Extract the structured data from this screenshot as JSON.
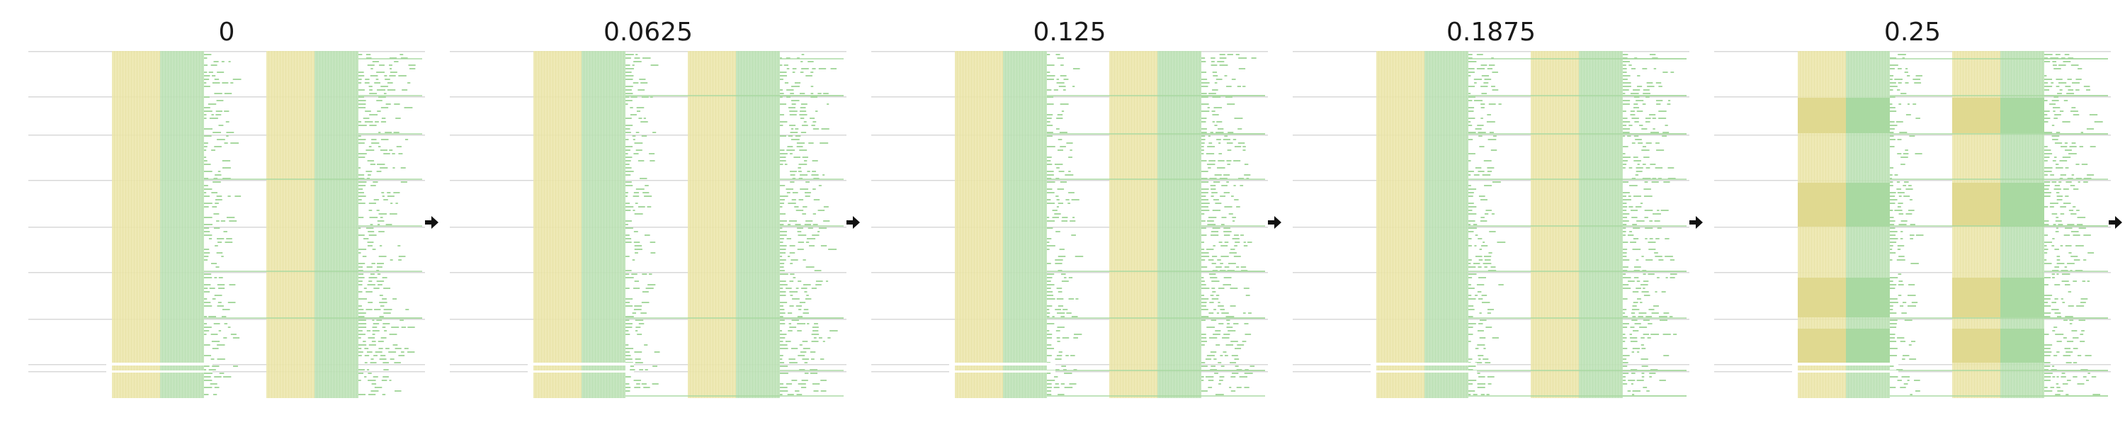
{
  "panels": [
    {
      "title": "0",
      "level": 0
    },
    {
      "title": "0.0625",
      "level": 0.0625
    },
    {
      "title": "0.125",
      "level": 0.125
    },
    {
      "title": "0.1875",
      "level": 0.1875
    },
    {
      "title": "0.25",
      "level": 0.25
    }
  ],
  "colors": {
    "yellow": "#ece7ad",
    "yellow_dark": "#e0d990",
    "green": "#bfe2b8",
    "green_dark": "#a9d9a1",
    "dash": "#a7d89f",
    "gridline": "#d8d8d8",
    "arrow": "#111111",
    "title": "#1a1a1a"
  },
  "icons": {
    "arrow": "arrow-right-icon"
  }
}
